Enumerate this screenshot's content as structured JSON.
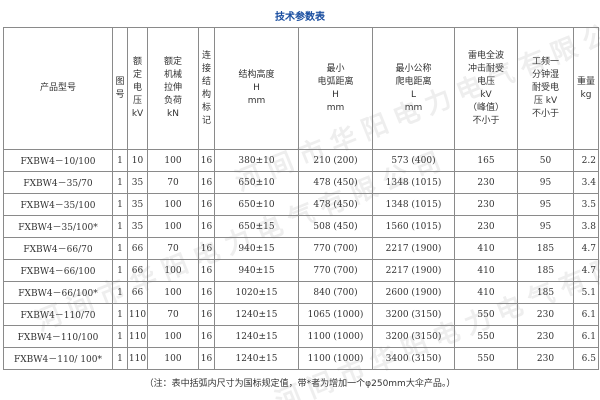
{
  "title": "技术参数表",
  "watermark": "河间市华阳电力电气有限公司",
  "table": {
    "headers": [
      [
        "产品型号"
      ],
      [
        "图",
        "号"
      ],
      [
        "额",
        "定",
        "电",
        "压",
        "kV"
      ],
      [
        "额定",
        "机械",
        "拉伸",
        "负荷",
        "kN"
      ],
      [
        "连",
        "接",
        "结",
        "构",
        "标",
        "记"
      ],
      [
        "结构高度",
        "H",
        "mm"
      ],
      [
        "最小",
        "电弧距离",
        "H",
        "mm"
      ],
      [
        "最小公称",
        "爬电距离",
        "L",
        "mm"
      ],
      [
        "雷电全波",
        "冲击耐受",
        "电压",
        "kV",
        "（峰值）",
        "不小于"
      ],
      [
        "工频一",
        "分钟湿",
        "耐受电",
        "压 kV",
        "不小于"
      ],
      [
        "重量",
        "kg"
      ]
    ],
    "rows": [
      [
        "FXBW4－10/100",
        "1",
        "10",
        "100",
        "16",
        "380±10",
        "210 (200)",
        "573 (400)",
        "165",
        "50",
        "2.2"
      ],
      [
        "FXBW4－35/70",
        "1",
        "35",
        "70",
        "16",
        "650±10",
        "478 (450)",
        "1348 (1015)",
        "230",
        "95",
        "3.4"
      ],
      [
        "FXBW4－35/100",
        "1",
        "35",
        "100",
        "16",
        "650±10",
        "478 (450)",
        "1348 (1015)",
        "230",
        "95",
        "3.5"
      ],
      [
        "FXBW4－35/100*",
        "1",
        "35",
        "100",
        "16",
        "650±15",
        "508 (450)",
        "1560 (1015)",
        "230",
        "95",
        "3.8"
      ],
      [
        "FXBW4－66/70",
        "1",
        "66",
        "70",
        "16",
        "940±15",
        "770 (700)",
        "2217 (1900)",
        "410",
        "185",
        "4.7"
      ],
      [
        "FXBW4－66/100",
        "1",
        "66",
        "100",
        "16",
        "940±15",
        "770 (700)",
        "2217 (1900)",
        "410",
        "185",
        "4.7"
      ],
      [
        "FXBW4－66/100*",
        "1",
        "66",
        "100",
        "16",
        "1020±15",
        "840 (700)",
        "2600 (1900)",
        "410",
        "185",
        "5.1"
      ],
      [
        "FXBW4－110/70",
        "1",
        "110",
        "70",
        "16",
        "1240±15",
        "1065 (1000)",
        "3200 (3150)",
        "550",
        "230",
        "6.1"
      ],
      [
        "FXBW4－110/100",
        "1",
        "110",
        "100",
        "16",
        "1240±15",
        "1100 (1000)",
        "3200 (3150)",
        "550",
        "230",
        "6.1"
      ],
      [
        "FXBW4－110/ 100*",
        "1",
        "110",
        "100",
        "16",
        "1240±15",
        "1100 (1000)",
        "3400 (3150)",
        "550",
        "230",
        "6.5"
      ]
    ]
  },
  "note": "（注：表中括弧内尺寸为国标规定值，带*者为增加一个φ250mm大伞产品。）"
}
